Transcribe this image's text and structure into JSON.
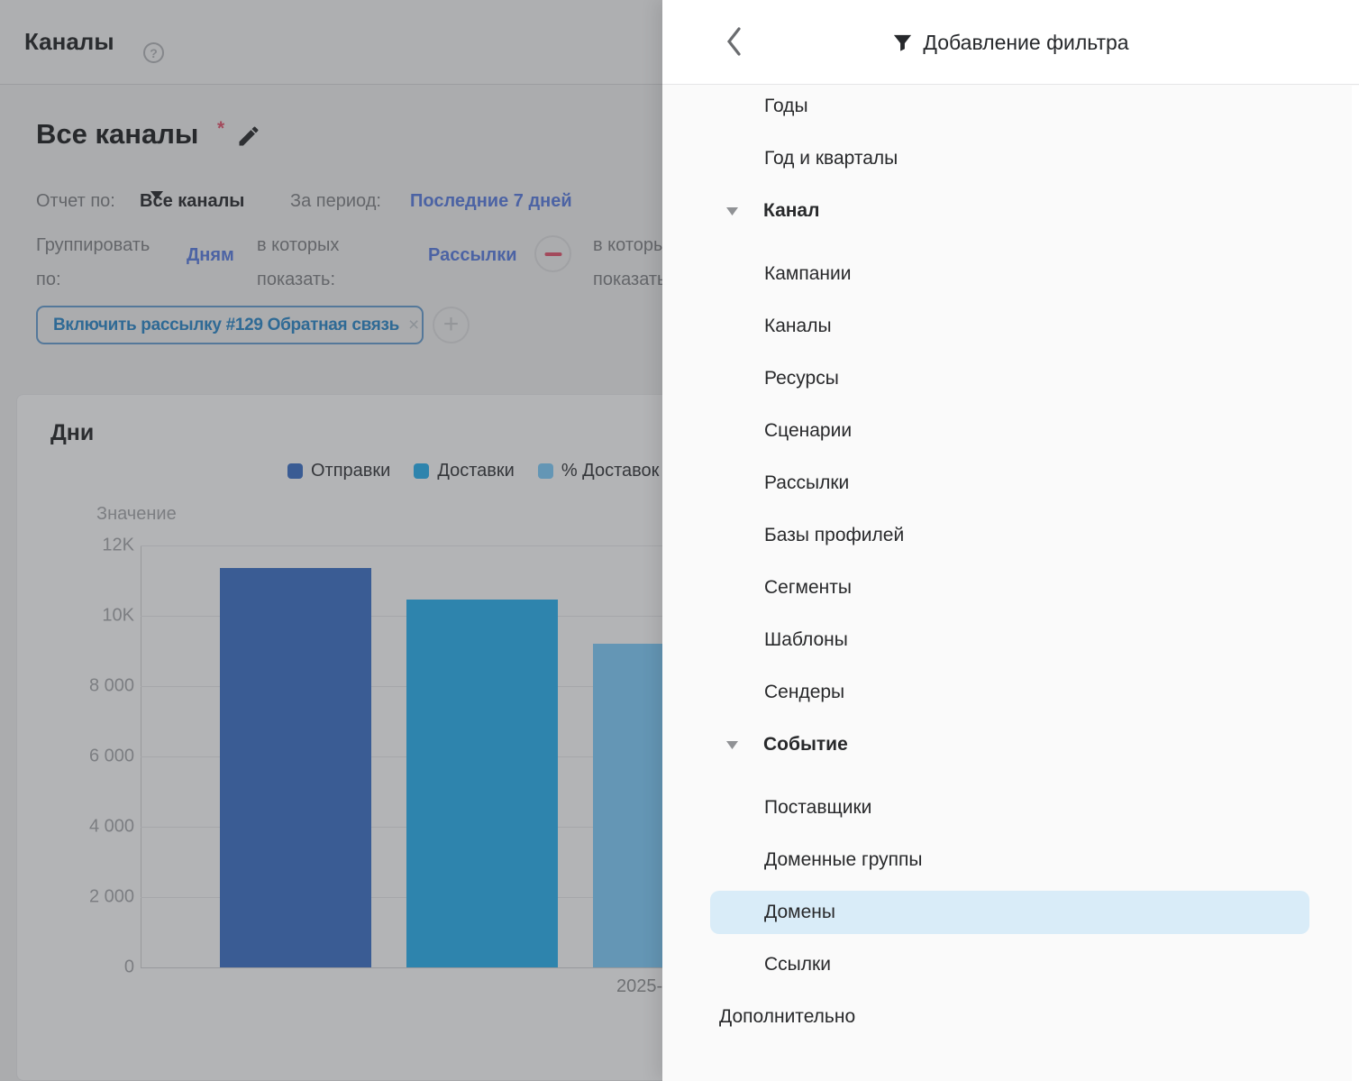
{
  "app": {
    "topbar": {
      "title": "Каналы"
    },
    "report": {
      "title": "Все каналы",
      "required_mark": "*",
      "label_report_by": "Отчет по:",
      "report_by_value": "Все каналы",
      "label_period": "За период:",
      "period_value": "Последние 7 дней",
      "label_group_by": "Группировать\nпо:",
      "group_by_value": "Дням",
      "label_show_in": "в которых\nпоказать:",
      "show_in_value": "Рассылки",
      "label_show_in_2": "в которых\nпоказать:"
    },
    "filter_chip": {
      "label": "Включить рассылку #129 Обратная связь",
      "close": "×"
    },
    "add_button": {
      "glyph": "+"
    }
  },
  "chart_data": {
    "type": "bar",
    "title": "Дни",
    "ylabel": "Значение",
    "xlabel_visible": "2025-",
    "categories": [
      "2025-"
    ],
    "series": [
      {
        "name": "Отправки",
        "color": "#3a5c94",
        "values": [
          11350
        ]
      },
      {
        "name": "Доставки",
        "color": "#2e84ad",
        "values": [
          10450
        ]
      },
      {
        "name": "% Доставок",
        "color": "#6496b5",
        "values": [
          9200
        ]
      }
    ],
    "ylim": [
      0,
      12000
    ],
    "yticks": [
      {
        "label": "12K",
        "value": 12000
      },
      {
        "label": "10K",
        "value": 10000
      },
      {
        "label": "8 000",
        "value": 8000
      },
      {
        "label": "6 000",
        "value": 6000
      },
      {
        "label": "4 000",
        "value": 4000
      },
      {
        "label": "2 000",
        "value": 2000
      },
      {
        "label": "0",
        "value": 0
      }
    ],
    "grid": true,
    "legend_position": "top"
  },
  "panel": {
    "title": "Добавление фильтра",
    "selected_color": "#d9ecf8",
    "items": [
      {
        "label": "Годы",
        "type": "item"
      },
      {
        "label": "Год и кварталы",
        "type": "item"
      },
      {
        "label": "Канал",
        "type": "group"
      },
      {
        "label": "Кампании",
        "type": "item"
      },
      {
        "label": "Каналы",
        "type": "item"
      },
      {
        "label": "Ресурсы",
        "type": "item"
      },
      {
        "label": "Сценарии",
        "type": "item"
      },
      {
        "label": "Рассылки",
        "type": "item"
      },
      {
        "label": "Базы профилей",
        "type": "item"
      },
      {
        "label": "Сегменты",
        "type": "item"
      },
      {
        "label": "Шаблоны",
        "type": "item"
      },
      {
        "label": "Сендеры",
        "type": "item"
      },
      {
        "label": "Событие",
        "type": "group"
      },
      {
        "label": "Поставщики",
        "type": "item"
      },
      {
        "label": "Доменные группы",
        "type": "item"
      },
      {
        "label": "Домены",
        "type": "item",
        "selected": true
      },
      {
        "label": "Ссылки",
        "type": "item"
      },
      {
        "label": "Дополнительно",
        "type": "section"
      }
    ]
  },
  "colors": {
    "link_blue": "#4c63a4",
    "chip_blue": "#2f6a95",
    "danger_red": "#a34a5c",
    "panel_bg": "#fafafa"
  }
}
